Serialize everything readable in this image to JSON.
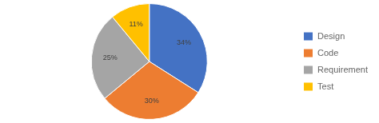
{
  "chart_data": {
    "type": "pie",
    "categories": [
      "Design",
      "Code",
      "Requirement",
      "Test"
    ],
    "values": [
      34,
      30,
      25,
      11
    ],
    "value_labels": [
      "34%",
      "30%",
      "25%",
      "11%"
    ],
    "colors": [
      "#4472C4",
      "#ED7D31",
      "#A5A5A5",
      "#FFC000"
    ],
    "data_labels": true,
    "legend": "right"
  }
}
